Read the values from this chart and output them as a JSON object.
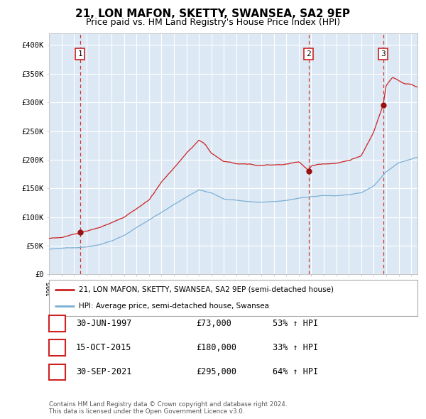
{
  "title": "21, LON MAFON, SKETTY, SWANSEA, SA2 9EP",
  "subtitle": "Price paid vs. HM Land Registry's House Price Index (HPI)",
  "title_fontsize": 11,
  "subtitle_fontsize": 9,
  "background_color": "#dce9f5",
  "plot_bg_color": "#dce9f5",
  "fig_bg_color": "#ffffff",
  "ylim": [
    0,
    420000
  ],
  "yticks": [
    0,
    50000,
    100000,
    150000,
    200000,
    250000,
    300000,
    350000,
    400000
  ],
  "ytick_labels": [
    "£0",
    "£50K",
    "£100K",
    "£150K",
    "£200K",
    "£250K",
    "£300K",
    "£350K",
    "£400K"
  ],
  "hpi_color": "#7bafd4",
  "price_color": "#cc2222",
  "marker_color": "#991111",
  "dashed_color": "#cc2222",
  "sale_points": [
    {
      "date_num": 1997.5,
      "price": 73000,
      "label": "1"
    },
    {
      "date_num": 2015.79,
      "price": 180000,
      "label": "2"
    },
    {
      "date_num": 2021.75,
      "price": 295000,
      "label": "3"
    }
  ],
  "legend_entries": [
    "21, LON MAFON, SKETTY, SWANSEA, SA2 9EP (semi-detached house)",
    "HPI: Average price, semi-detached house, Swansea"
  ],
  "table_rows": [
    {
      "num": "1",
      "date": "30-JUN-1997",
      "price": "£73,000",
      "hpi": "53% ↑ HPI"
    },
    {
      "num": "2",
      "date": "15-OCT-2015",
      "price": "£180,000",
      "hpi": "33% ↑ HPI"
    },
    {
      "num": "3",
      "date": "30-SEP-2021",
      "price": "£295,000",
      "hpi": "64% ↑ HPI"
    }
  ],
  "footnote": "Contains HM Land Registry data © Crown copyright and database right 2024.\nThis data is licensed under the Open Government Licence v3.0.",
  "xmin": 1995.0,
  "xmax": 2024.5
}
